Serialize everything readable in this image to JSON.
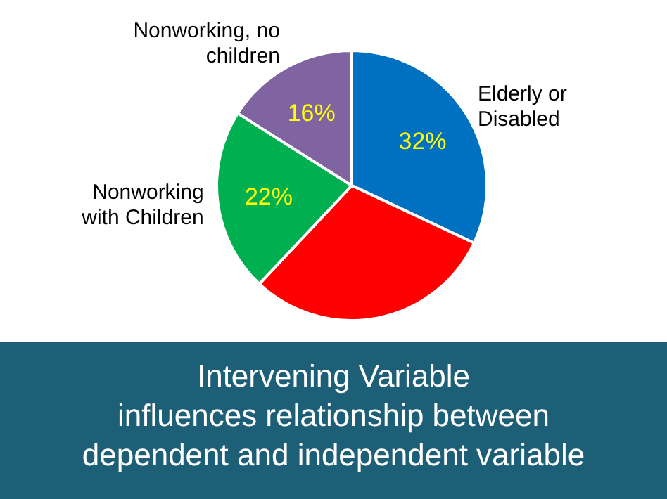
{
  "chart_data": {
    "type": "pie",
    "categories": [
      "Elderly or Disabled",
      null,
      "Nonworking with Children",
      "Nonworking, no children"
    ],
    "values": [
      32,
      30,
      22,
      16
    ],
    "colors": [
      "#0070c0",
      "#ff0000",
      "#00b050",
      "#8064a2"
    ],
    "value_labels": [
      "32%",
      null,
      "22%",
      "16%"
    ],
    "annotations": [
      "Intervening Variable\ninfluences relationship between\ndependent and independent variable"
    ]
  }
}
